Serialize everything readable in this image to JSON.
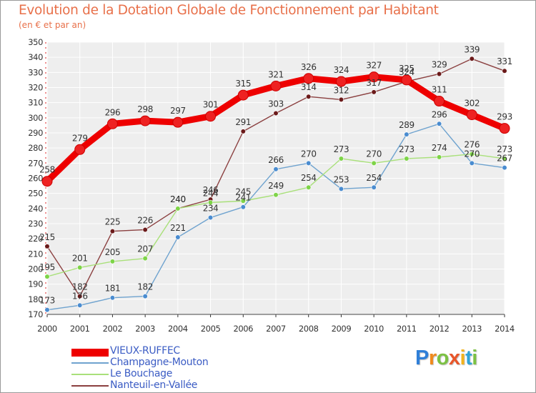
{
  "chart_data": {
    "type": "line",
    "title": "Evolution de la Dotation Globale de Fonctionnement par Habitant",
    "subtitle": "(en € et par an)",
    "xlabel": "",
    "ylabel": "",
    "ylim": [
      170,
      350
    ],
    "y_ticks": [
      170,
      180,
      190,
      200,
      210,
      220,
      230,
      240,
      250,
      260,
      270,
      280,
      290,
      300,
      310,
      320,
      330,
      340,
      350
    ],
    "categories": [
      "2000",
      "2001",
      "2002",
      "2003",
      "2004",
      "2005",
      "2006",
      "2007",
      "2008",
      "2009",
      "2010",
      "2011",
      "2012",
      "2013",
      "2014"
    ],
    "grid": true,
    "legend_position": "bottom-left",
    "series": [
      {
        "name": "VIEUX-RUFFEC",
        "color": "#ee0000",
        "marker_color": "#ee2222",
        "values": [
          258,
          279,
          296,
          298,
          297,
          301,
          315,
          321,
          326,
          324,
          327,
          325,
          311,
          302,
          293
        ]
      },
      {
        "name": "Champagne-Mouton",
        "color": "#6fa3cf",
        "marker_color": "#4a8cd0",
        "values": [
          173,
          176,
          181,
          182,
          221,
          234,
          241,
          266,
          270,
          253,
          254,
          289,
          296,
          270,
          267
        ]
      },
      {
        "name": "Le Bouchage",
        "color": "#a9e07a",
        "marker_color": "#7ed448",
        "values": [
          195,
          201,
          205,
          207,
          240,
          244,
          245,
          249,
          254,
          273,
          270,
          273,
          274,
          276,
          273
        ]
      },
      {
        "name": "Nanteuil-en-Vallée",
        "color": "#8b4040",
        "marker_color": "#6b1a1a",
        "values": [
          215,
          182,
          225,
          226,
          240,
          246,
          291,
          303,
          314,
          312,
          317,
          324,
          329,
          339,
          331
        ]
      }
    ]
  },
  "brand": {
    "logo_letters": [
      "P",
      "r",
      "o",
      "x",
      "i",
      "t",
      "i"
    ],
    "logo_colors": [
      "#2f7fd8",
      "#f08a1c",
      "#7cc143",
      "#e8562a",
      "#f2b21c",
      "#2fa3d8",
      "#7cc143"
    ]
  }
}
